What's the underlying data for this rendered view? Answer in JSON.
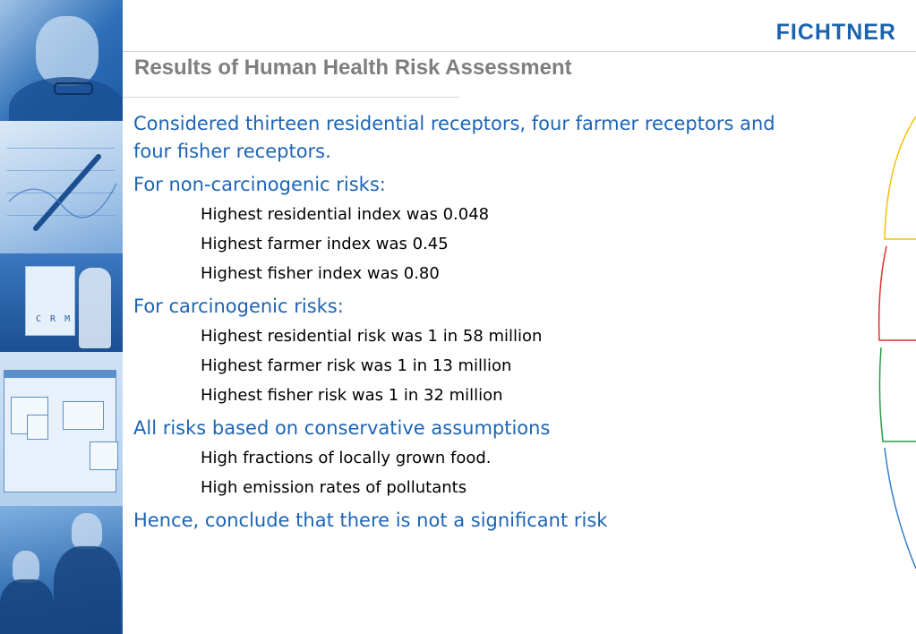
{
  "header": {
    "logo_text": "FICHTNER",
    "title": "Results of Human Health Risk Assessment"
  },
  "sidebar_art": {
    "board_text": "C R M"
  },
  "content": {
    "items": [
      {
        "level": 1,
        "text": "Considered thirteen residential receptors, four farmer receptors and four fisher receptors."
      },
      {
        "level": 1,
        "text": "For non-carcinogenic risks:"
      },
      {
        "level": 2,
        "text": "Highest residential index was 0.048"
      },
      {
        "level": 2,
        "text": "Highest farmer index was 0.45"
      },
      {
        "level": 2,
        "text": "Highest fisher index was 0.80"
      },
      {
        "level": 1,
        "text": "For carcinogenic risks:"
      },
      {
        "level": 2,
        "text": "Highest residential risk was 1 in 58 million"
      },
      {
        "level": 2,
        "text": "Highest farmer risk was 1 in 13 million"
      },
      {
        "level": 2,
        "text": "Highest fisher risk was 1 in 32 million"
      },
      {
        "level": 1,
        "text": "All risks based on conservative assumptions"
      },
      {
        "level": 2,
        "text": "High fractions of locally grown food."
      },
      {
        "level": 2,
        "text": "High emission rates of pollutants"
      },
      {
        "level": 1,
        "text": "Hence, conclude that there is not a significant risk"
      }
    ]
  },
  "colors": {
    "brand_blue": "#1b63ae",
    "bullet_level1": "#1d64b4",
    "bullet_level2": "#000000",
    "title_gray": "#7f7f7f",
    "arc_yellow": "#f2c200",
    "arc_red": "#e03030",
    "arc_green": "#2a9a4a",
    "arc_blue": "#3a7fc9"
  }
}
